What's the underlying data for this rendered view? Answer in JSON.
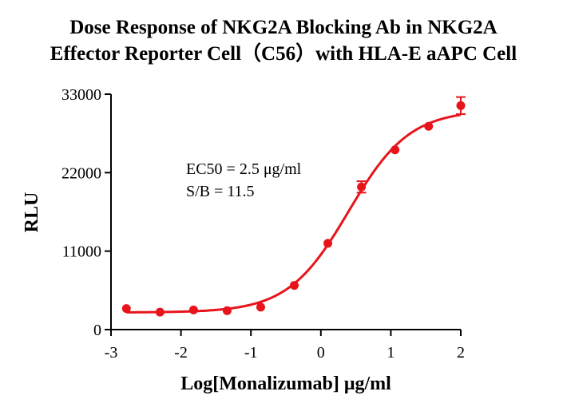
{
  "chart_data": {
    "type": "scatter",
    "title_line1": "Dose Response of NKG2A Blocking Ab in NKG2A",
    "title_line2": "Effector Reporter Cell（C56）with HLA-E aAPC Cell",
    "xlabel": "Log[Monalizumab] μg/ml",
    "ylabel": "RLU",
    "xlim": [
      -3,
      2
    ],
    "ylim": [
      0,
      33000
    ],
    "xticks": [
      "-3",
      "-2",
      "-1",
      "0",
      "1",
      "2"
    ],
    "yticks": [
      "0",
      "11000",
      "22000",
      "33000"
    ],
    "grid": false,
    "color": "#e8141b",
    "series": [
      {
        "x": [
          -2.78,
          -2.3,
          -1.82,
          -1.34,
          -0.86,
          -0.38,
          0.1,
          0.58,
          1.06,
          1.54,
          2.0
        ],
        "y": [
          2950,
          2450,
          2750,
          2650,
          3150,
          6200,
          12100,
          20000,
          25200,
          28500,
          31400
        ],
        "err": [
          0,
          0,
          0,
          0,
          0,
          0,
          0,
          800,
          0,
          0,
          1200
        ]
      }
    ],
    "fit": {
      "bottom": 2400,
      "top": 30800,
      "log_ec50": 0.398,
      "hill": 1.0
    },
    "annotations": [
      "EC50 = 2.5 μg/ml",
      "S/B = 11.5"
    ]
  }
}
